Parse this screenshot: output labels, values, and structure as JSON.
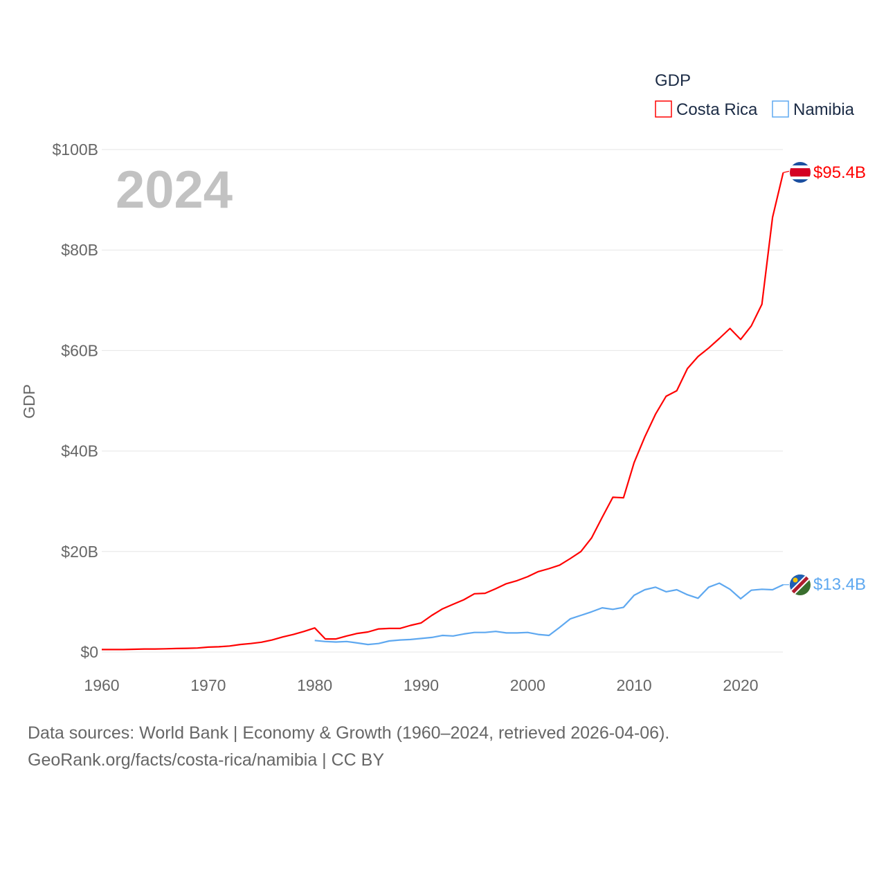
{
  "chart_data": {
    "type": "line",
    "title": "GDP",
    "overlay_year": "2024",
    "ylabel": "GDP",
    "xlabel": "",
    "xlim": [
      1960,
      2024
    ],
    "ylim": [
      0,
      100
    ],
    "x_ticks": [
      1960,
      1970,
      1980,
      1990,
      2000,
      2010,
      2020
    ],
    "x_tick_labels": [
      "1960",
      "1970",
      "1980",
      "1990",
      "2000",
      "2010",
      "2020"
    ],
    "y_ticks": [
      0,
      20,
      40,
      60,
      80,
      100
    ],
    "y_tick_labels": [
      "$0",
      "$20B",
      "$40B",
      "$60B",
      "$80B",
      "$100B"
    ],
    "grid": true,
    "legend_position": "top-right",
    "series": [
      {
        "name": "Costa Rica",
        "color": "#ff0000",
        "end_label": "$95.4B",
        "flag": "costa-rica-flag",
        "x_start": 1960,
        "values": [
          0.5,
          0.5,
          0.5,
          0.55,
          0.6,
          0.6,
          0.65,
          0.7,
          0.75,
          0.8,
          0.98,
          1.05,
          1.2,
          1.5,
          1.7,
          1.96,
          2.4,
          3.0,
          3.5,
          4.1,
          4.8,
          2.6,
          2.6,
          3.2,
          3.7,
          4.0,
          4.6,
          4.7,
          4.7,
          5.3,
          5.8,
          7.3,
          8.6,
          9.5,
          10.4,
          11.6,
          11.7,
          12.6,
          13.6,
          14.2,
          15.0,
          16.0,
          16.6,
          17.3,
          18.6,
          20.0,
          22.7,
          26.8,
          30.8,
          30.7,
          37.7,
          42.8,
          47.3,
          50.9,
          52.0,
          56.4,
          58.8,
          60.5,
          62.4,
          64.4,
          62.2,
          64.9,
          69.2,
          86.5,
          95.4
        ]
      },
      {
        "name": "Namibia",
        "color": "#5ea8f0",
        "end_label": "$13.4B",
        "flag": "namibia-flag",
        "x_start": 1980,
        "values": [
          2.3,
          2.1,
          2.0,
          2.1,
          1.8,
          1.5,
          1.7,
          2.2,
          2.4,
          2.5,
          2.7,
          2.9,
          3.3,
          3.2,
          3.6,
          3.9,
          3.9,
          4.1,
          3.8,
          3.8,
          3.9,
          3.5,
          3.3,
          4.9,
          6.6,
          7.3,
          8.0,
          8.8,
          8.5,
          8.9,
          11.3,
          12.4,
          12.9,
          12.0,
          12.4,
          11.4,
          10.7,
          12.9,
          13.7,
          12.5,
          10.6,
          12.3,
          12.5,
          12.4,
          13.4
        ]
      }
    ]
  },
  "footer": {
    "line1": "Data sources: World Bank | Economy & Growth (1960–2024, retrieved 2026-04-06).",
    "line2": "GeoRank.org/facts/costa-rica/namibia | CC BY"
  }
}
